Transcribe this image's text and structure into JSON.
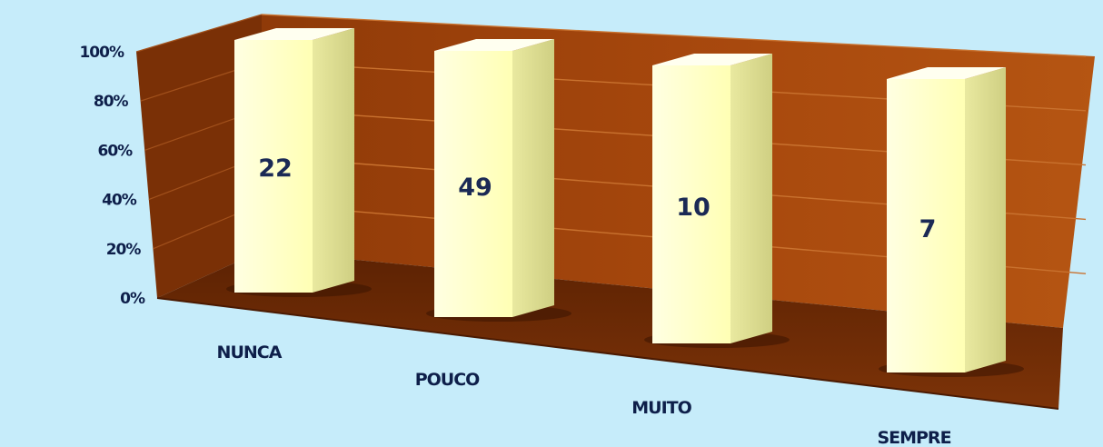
{
  "chart_data": {
    "type": "bar",
    "style": "3d-stacked-100-percent",
    "categories": [
      "NUNCA",
      "POUCO",
      "MUITO",
      "SEMPRE"
    ],
    "values": [
      22,
      49,
      10,
      7
    ],
    "y_tick_labels": [
      "0%",
      "20%",
      "40%",
      "60%",
      "80%",
      "100%"
    ],
    "ylim": [
      0,
      100
    ],
    "grid": true,
    "legend": "none",
    "colors": {
      "background": "#c6ecfa",
      "back_wall": "#a6470d",
      "side_wall": "#7a3006",
      "floor": "#6e2a05",
      "bar_front": "#ffffc0",
      "bar_side": "#dede95",
      "bar_top": "#fffff0"
    }
  }
}
